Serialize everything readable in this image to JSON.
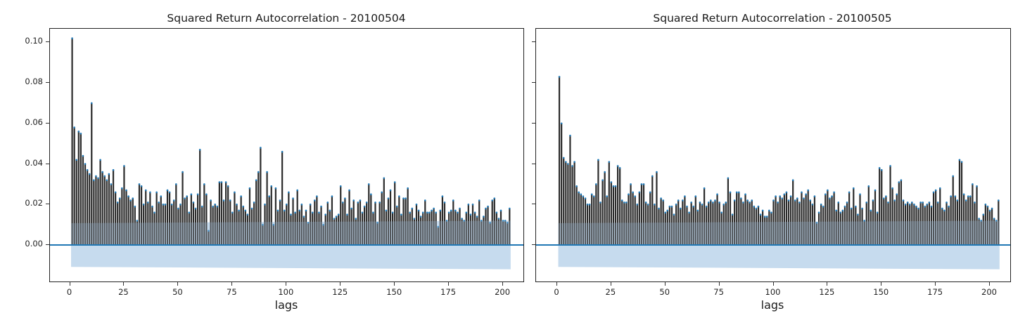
{
  "chart_data": [
    {
      "type": "bar",
      "title": "Squared Return Autocorrelation - 20100504",
      "xlabel": "lags",
      "ylabel": "",
      "xlim": [
        -9,
        210
      ],
      "ylim": [
        -0.0187,
        0.1067
      ],
      "xticks": [
        0,
        25,
        50,
        75,
        100,
        125,
        150,
        175,
        200
      ],
      "yticks": [
        "0.00",
        "0.02",
        "0.04",
        "0.06",
        "0.08",
        "0.10"
      ],
      "grid": false,
      "confidence_band": {
        "upper_start": 0.0108,
        "upper_end": 0.012,
        "lower_start": -0.0108,
        "lower_end": -0.012
      },
      "bar_color": "#2b2b2b",
      "marker_color": "#1f77b4",
      "band_color": "#c6dbee",
      "zero_line_color": "#1f77b4",
      "x": "lags 1..199",
      "values": [
        0.102,
        0.058,
        0.042,
        0.056,
        0.055,
        0.044,
        0.04,
        0.037,
        0.035,
        0.07,
        0.032,
        0.034,
        0.033,
        0.042,
        0.036,
        0.034,
        0.032,
        0.035,
        0.03,
        0.037,
        0.026,
        0.021,
        0.023,
        0.028,
        0.039,
        0.027,
        0.024,
        0.022,
        0.023,
        0.019,
        0.012,
        0.03,
        0.029,
        0.02,
        0.027,
        0.021,
        0.026,
        0.019,
        0.016,
        0.026,
        0.021,
        0.024,
        0.02,
        0.02,
        0.027,
        0.026,
        0.02,
        0.022,
        0.03,
        0.018,
        0.02,
        0.036,
        0.023,
        0.024,
        0.016,
        0.025,
        0.021,
        0.018,
        0.025,
        0.047,
        0.019,
        0.03,
        0.025,
        0.007,
        0.022,
        0.019,
        0.02,
        0.019,
        0.031,
        0.031,
        0.022,
        0.031,
        0.029,
        0.022,
        0.016,
        0.026,
        0.02,
        0.017,
        0.024,
        0.019,
        0.017,
        0.015,
        0.028,
        0.018,
        0.021,
        0.032,
        0.036,
        0.048,
        0.01,
        0.02,
        0.036,
        0.024,
        0.029,
        0.01,
        0.028,
        0.017,
        0.022,
        0.046,
        0.017,
        0.02,
        0.026,
        0.015,
        0.023,
        0.016,
        0.027,
        0.017,
        0.02,
        0.014,
        0.017,
        0.011,
        0.02,
        0.016,
        0.022,
        0.024,
        0.016,
        0.019,
        0.01,
        0.015,
        0.021,
        0.017,
        0.024,
        0.013,
        0.014,
        0.015,
        0.029,
        0.021,
        0.023,
        0.015,
        0.027,
        0.018,
        0.022,
        0.013,
        0.021,
        0.022,
        0.016,
        0.019,
        0.021,
        0.03,
        0.025,
        0.016,
        0.021,
        0.011,
        0.021,
        0.026,
        0.033,
        0.017,
        0.023,
        0.027,
        0.016,
        0.031,
        0.019,
        0.024,
        0.015,
        0.023,
        0.023,
        0.028,
        0.016,
        0.018,
        0.013,
        0.02,
        0.017,
        0.014,
        0.016,
        0.022,
        0.016,
        0.016,
        0.017,
        0.018,
        0.016,
        0.009,
        0.017,
        0.024,
        0.021,
        0.012,
        0.016,
        0.017,
        0.022,
        0.017,
        0.016,
        0.018,
        0.013,
        0.012,
        0.016,
        0.02,
        0.015,
        0.02,
        0.016,
        0.014,
        0.022,
        0.012,
        0.014,
        0.018,
        0.019,
        0.011,
        0.022,
        0.023,
        0.016,
        0.013,
        0.017,
        0.012,
        0.012,
        0.011,
        0.018
      ]
    },
    {
      "type": "bar",
      "title": "Squared Return Autocorrelation - 20100505",
      "xlabel": "lags",
      "ylabel": "",
      "xlim": [
        -9,
        210
      ],
      "ylim": [
        -0.0187,
        0.1067
      ],
      "xticks": [
        0,
        25,
        50,
        75,
        100,
        125,
        150,
        175,
        200
      ],
      "yticks": [
        "0.00",
        "0.02",
        "0.04",
        "0.06",
        "0.08",
        "0.10"
      ],
      "ytick_labels_visible": false,
      "grid": false,
      "confidence_band": {
        "upper_start": 0.0108,
        "upper_end": 0.012,
        "lower_start": -0.0108,
        "lower_end": -0.012
      },
      "bar_color": "#2b2b2b",
      "marker_color": "#1f77b4",
      "band_color": "#c6dbee",
      "zero_line_color": "#1f77b4",
      "x": "lags 1..199",
      "values": [
        0.083,
        0.06,
        0.043,
        0.041,
        0.04,
        0.054,
        0.039,
        0.041,
        0.029,
        0.026,
        0.025,
        0.024,
        0.023,
        0.02,
        0.02,
        0.025,
        0.024,
        0.03,
        0.042,
        0.021,
        0.032,
        0.036,
        0.024,
        0.041,
        0.031,
        0.029,
        0.029,
        0.039,
        0.038,
        0.022,
        0.021,
        0.021,
        0.025,
        0.03,
        0.026,
        0.024,
        0.02,
        0.026,
        0.03,
        0.03,
        0.021,
        0.02,
        0.026,
        0.034,
        0.02,
        0.036,
        0.018,
        0.023,
        0.022,
        0.016,
        0.017,
        0.019,
        0.019,
        0.015,
        0.02,
        0.022,
        0.018,
        0.022,
        0.024,
        0.019,
        0.016,
        0.021,
        0.019,
        0.024,
        0.017,
        0.021,
        0.02,
        0.028,
        0.019,
        0.021,
        0.022,
        0.021,
        0.022,
        0.025,
        0.021,
        0.016,
        0.02,
        0.021,
        0.033,
        0.026,
        0.015,
        0.022,
        0.026,
        0.026,
        0.023,
        0.021,
        0.025,
        0.022,
        0.021,
        0.022,
        0.019,
        0.018,
        0.019,
        0.015,
        0.017,
        0.014,
        0.014,
        0.017,
        0.016,
        0.022,
        0.024,
        0.021,
        0.024,
        0.023,
        0.025,
        0.026,
        0.022,
        0.024,
        0.032,
        0.022,
        0.023,
        0.021,
        0.026,
        0.023,
        0.025,
        0.027,
        0.022,
        0.02,
        0.024,
        0.011,
        0.016,
        0.02,
        0.019,
        0.025,
        0.027,
        0.023,
        0.024,
        0.026,
        0.017,
        0.021,
        0.016,
        0.017,
        0.019,
        0.021,
        0.026,
        0.018,
        0.028,
        0.019,
        0.015,
        0.025,
        0.018,
        0.012,
        0.021,
        0.029,
        0.017,
        0.022,
        0.027,
        0.016,
        0.038,
        0.037,
        0.023,
        0.024,
        0.021,
        0.039,
        0.028,
        0.022,
        0.025,
        0.031,
        0.032,
        0.022,
        0.02,
        0.021,
        0.02,
        0.021,
        0.02,
        0.019,
        0.018,
        0.021,
        0.021,
        0.019,
        0.02,
        0.021,
        0.019,
        0.026,
        0.027,
        0.021,
        0.028,
        0.018,
        0.017,
        0.021,
        0.019,
        0.024,
        0.034,
        0.024,
        0.022,
        0.042,
        0.041,
        0.025,
        0.022,
        0.024,
        0.024,
        0.03,
        0.021,
        0.029,
        0.013,
        0.012,
        0.015,
        0.02,
        0.019,
        0.017,
        0.018,
        0.013,
        0.012,
        0.022
      ]
    }
  ],
  "panels": [
    {
      "title": "Squared Return Autocorrelation - 20100504",
      "xlabel": "lags"
    },
    {
      "title": "Squared Return Autocorrelation - 20100505",
      "xlabel": "lags"
    }
  ]
}
